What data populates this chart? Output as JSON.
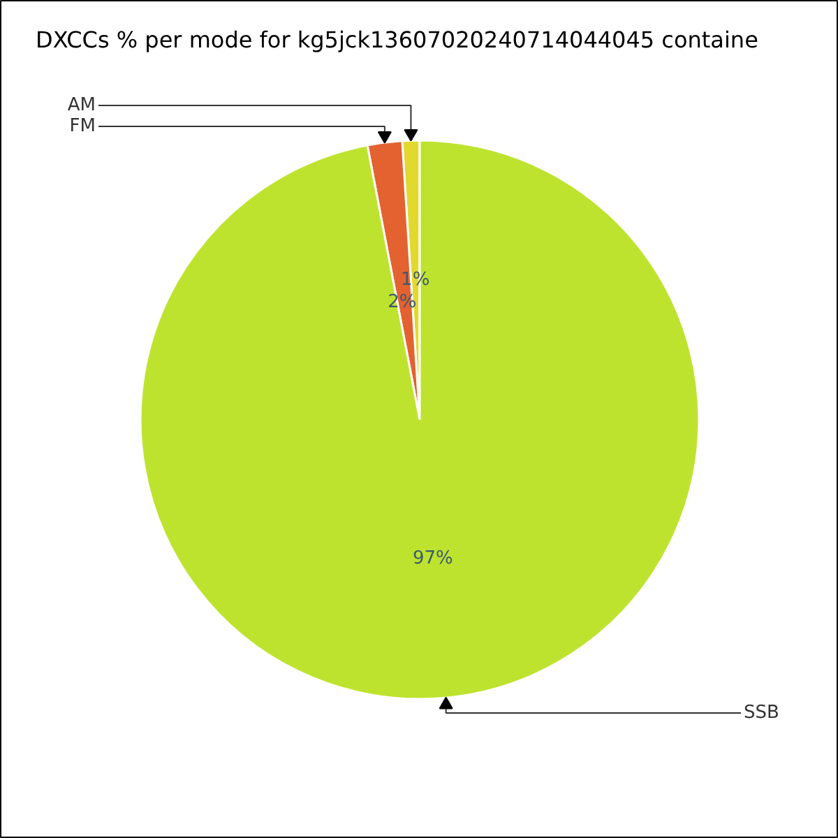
{
  "chart_data": {
    "type": "pie",
    "title": "DXCCs % per mode for kg5jck13607020240714044045 containe",
    "categories": [
      "AM",
      "FM",
      "SSB"
    ],
    "values": [
      1,
      2,
      97
    ],
    "colors": [
      "#e2d92e",
      "#e3622f",
      "#bee32f"
    ],
    "value_labels": [
      "1%",
      "2%",
      "97%"
    ]
  }
}
